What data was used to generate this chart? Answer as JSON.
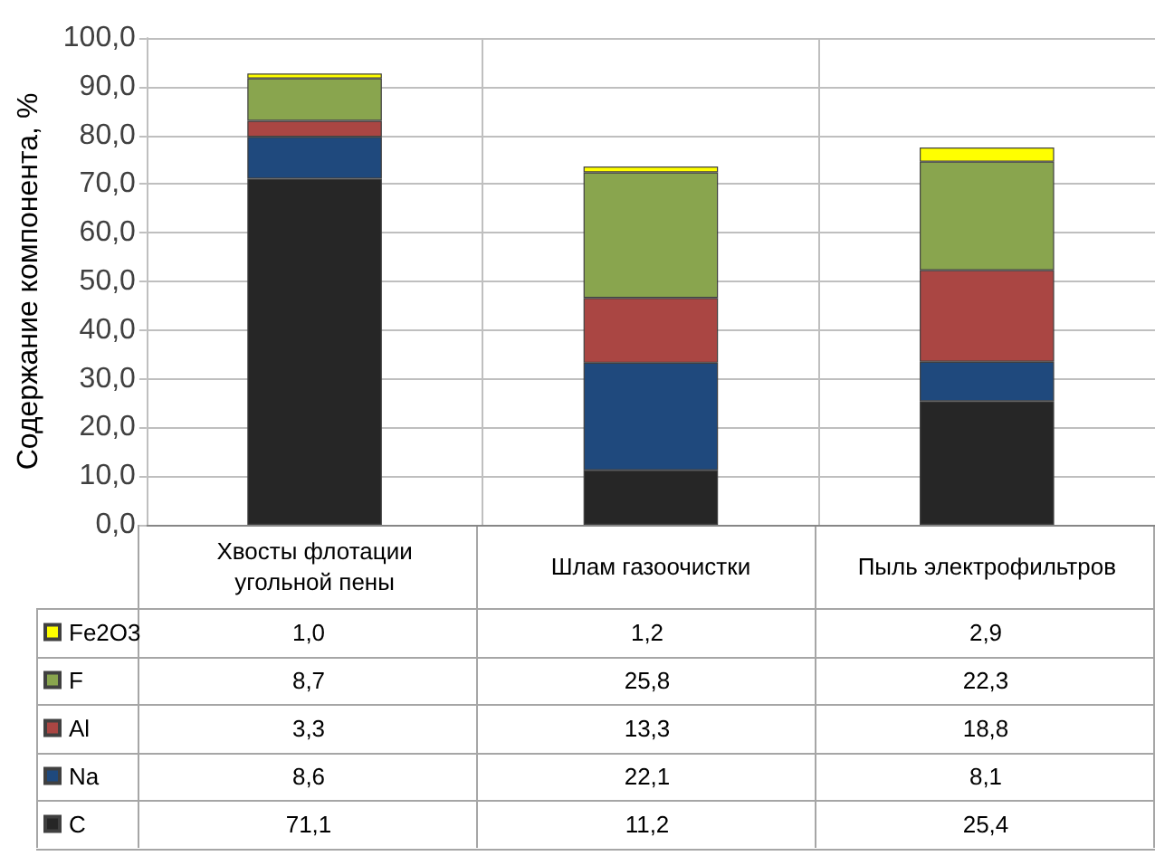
{
  "chart_data": {
    "type": "bar",
    "stacked": true,
    "ylabel": "Содержание компонента, %",
    "categories": [
      "Хвосты флотации угольной пены",
      "Шлам газоочистки",
      "Пыль электрофильтров"
    ],
    "series": [
      {
        "name": "C",
        "color": "#262626",
        "values": [
          71.1,
          11.2,
          25.4
        ],
        "value_labels": [
          "71,1",
          "11,2",
          "25,4"
        ]
      },
      {
        "name": "Na",
        "color": "#1f497d",
        "values": [
          8.6,
          22.1,
          8.1
        ],
        "value_labels": [
          "8,6",
          "22,1",
          "8,1"
        ]
      },
      {
        "name": "Al",
        "color": "#aa4643",
        "values": [
          3.3,
          13.3,
          18.8
        ],
        "value_labels": [
          "3,3",
          "13,3",
          "18,8"
        ]
      },
      {
        "name": "F",
        "color": "#89a54e",
        "values": [
          8.7,
          25.8,
          22.3
        ],
        "value_labels": [
          "8,7",
          "25,8",
          "22,3"
        ]
      },
      {
        "name": "Fe2O3",
        "color": "#ffff00",
        "values": [
          1.0,
          1.2,
          2.9
        ],
        "value_labels": [
          "1,0",
          "1,2",
          "2,9"
        ]
      }
    ],
    "ylim": [
      0,
      100
    ],
    "yticks": [
      {
        "value": 0,
        "label": "0,0"
      },
      {
        "value": 10,
        "label": "10,0"
      },
      {
        "value": 20,
        "label": "20,0"
      },
      {
        "value": 30,
        "label": "30,0"
      },
      {
        "value": 40,
        "label": "40,0"
      },
      {
        "value": 50,
        "label": "50,0"
      },
      {
        "value": 60,
        "label": "60,0"
      },
      {
        "value": 70,
        "label": "70,0"
      },
      {
        "value": 80,
        "label": "80,0"
      },
      {
        "value": 90,
        "label": "90,0"
      },
      {
        "value": 100,
        "label": "100,0"
      }
    ],
    "grid": true,
    "legend": "bottom left"
  }
}
